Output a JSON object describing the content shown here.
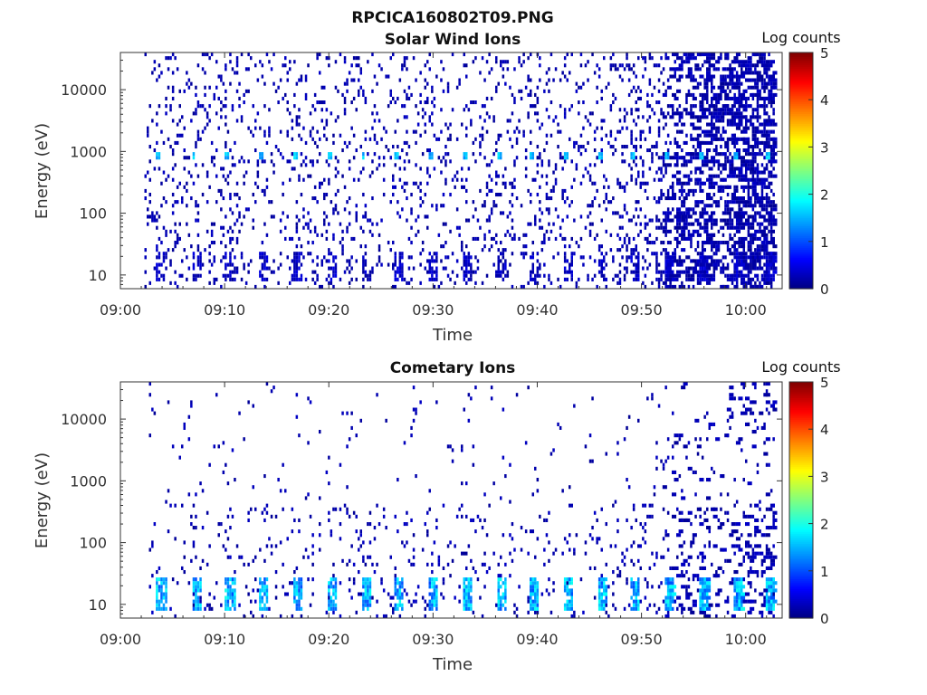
{
  "figure_title": "RPCICA160802T09.PNG",
  "colors": {
    "data": "#00008f",
    "axis": "#333333",
    "colormap": "jet"
  },
  "chart_data": [
    {
      "type": "heatmap",
      "title": "Solar Wind Ions",
      "xlabel": "Time",
      "ylabel": "Energy (eV)",
      "yscale": "log",
      "xlim_minutes": [
        0,
        63.5
      ],
      "ylim": [
        6,
        40000
      ],
      "x_tick_labels": [
        "09:00",
        "09:10",
        "09:20",
        "09:30",
        "09:40",
        "09:50",
        "10:00"
      ],
      "x_tick_minutes": [
        0,
        10,
        20,
        30,
        40,
        50,
        60
      ],
      "y_tick_labels": [
        "10",
        "100",
        "1000",
        "10000"
      ],
      "y_tick_values": [
        10,
        100,
        1000,
        10000
      ],
      "colorbar": {
        "label": "Log counts",
        "range": [
          0,
          5
        ],
        "tick_labels": [
          "0",
          "1",
          "2",
          "3",
          "4",
          "5"
        ]
      },
      "features": {
        "sweep_start_minutes": [
          3.4,
          6.7,
          10.0,
          13.2,
          16.5,
          19.8,
          23.0,
          26.2,
          29.5,
          32.7,
          36.0,
          39.2,
          42.5,
          45.7,
          48.9,
          52.2,
          55.4,
          58.7,
          61.9
        ],
        "peak_energy_eV": 850,
        "peak_level_log_counts": 1.8,
        "low_energy_band_eV": [
          8,
          25
        ],
        "background_level_log_counts": 0.1
      }
    },
    {
      "type": "heatmap",
      "title": "Cometary Ions",
      "xlabel": "Time",
      "ylabel": "Energy (eV)",
      "yscale": "log",
      "xlim_minutes": [
        0,
        63.5
      ],
      "ylim": [
        6,
        40000
      ],
      "x_tick_labels": [
        "09:00",
        "09:10",
        "09:20",
        "09:30",
        "09:40",
        "09:50",
        "10:00"
      ],
      "x_tick_minutes": [
        0,
        10,
        20,
        30,
        40,
        50,
        60
      ],
      "y_tick_labels": [
        "10",
        "100",
        "1000",
        "10000"
      ],
      "y_tick_values": [
        10,
        100,
        1000,
        10000
      ],
      "colorbar": {
        "label": "Log counts",
        "range": [
          0,
          5
        ],
        "tick_labels": [
          "0",
          "1",
          "2",
          "3",
          "4",
          "5"
        ]
      },
      "features": {
        "sweep_start_minutes": [
          3.4,
          6.7,
          10.0,
          13.2,
          16.5,
          19.8,
          23.0,
          26.2,
          29.5,
          32.7,
          36.0,
          39.2,
          42.5,
          45.7,
          48.9,
          52.2,
          55.4,
          58.7,
          61.9
        ],
        "peak_energy_eV": 18,
        "peak_level_log_counts": 1.8,
        "low_energy_band_eV": [
          8,
          28
        ],
        "background_level_log_counts": 0.1
      }
    }
  ]
}
